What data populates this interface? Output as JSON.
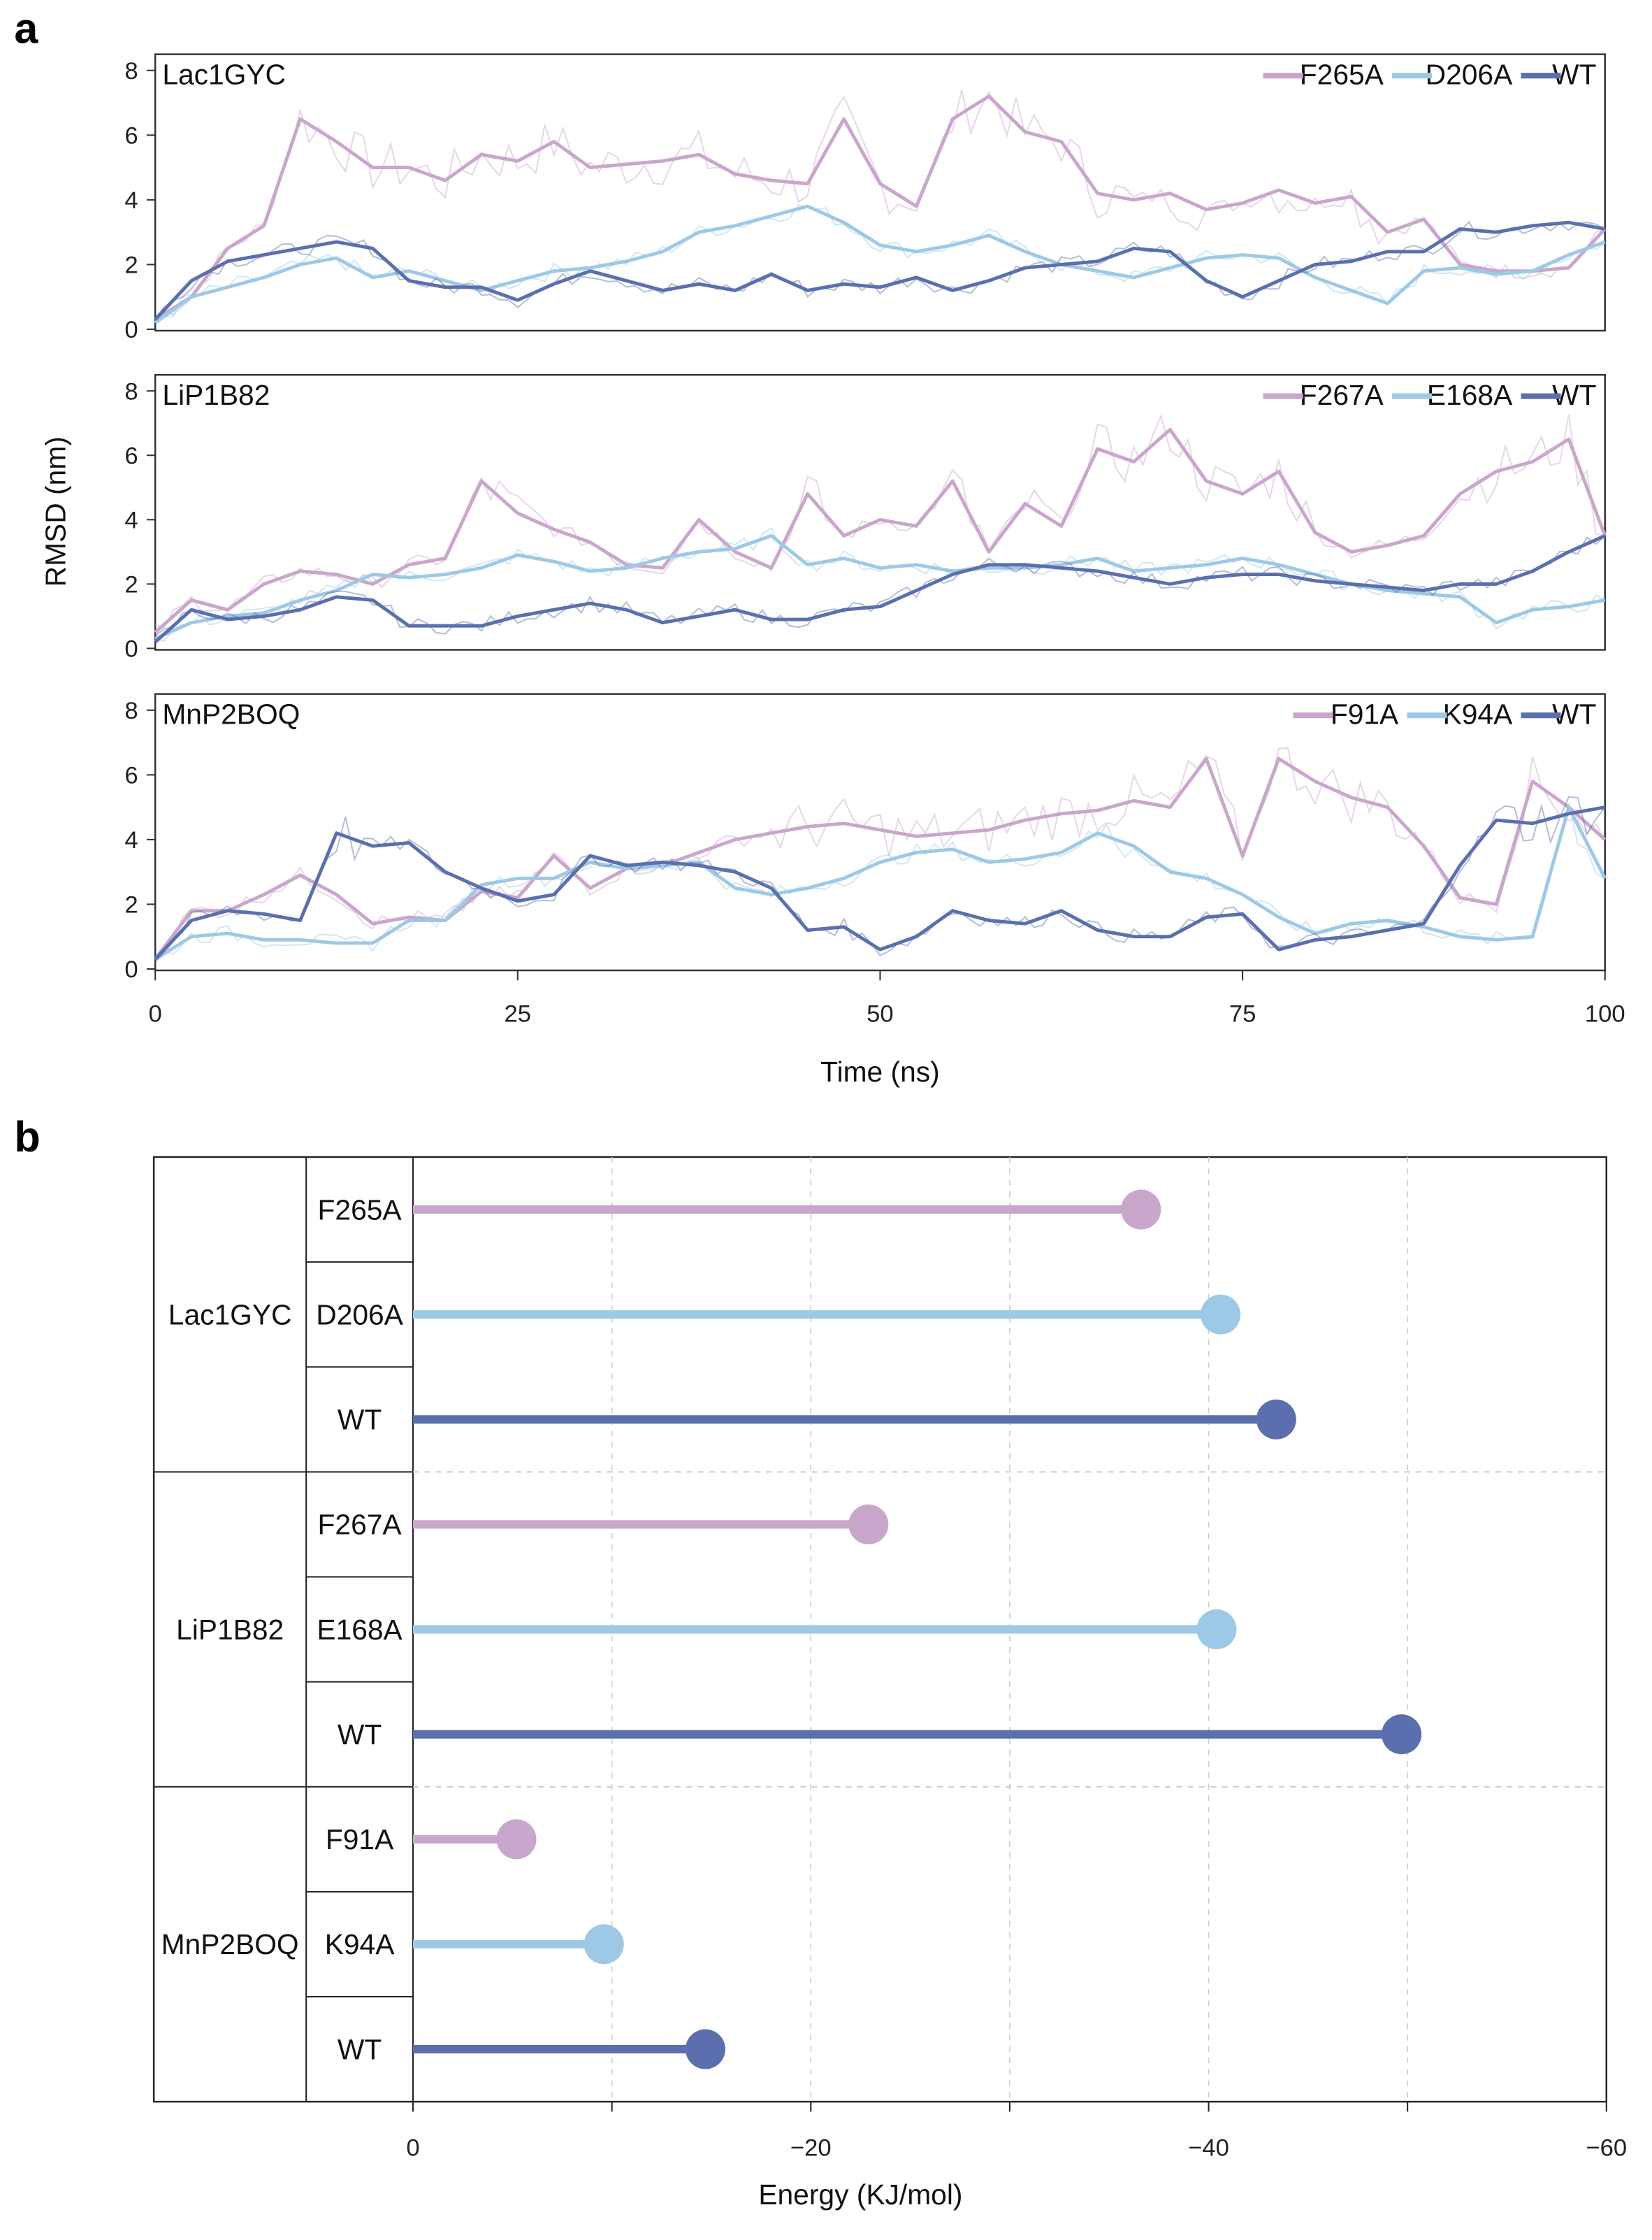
{
  "chart_data": [
    {
      "type": "line",
      "panel": "a",
      "xlabel": "Time (ns)",
      "ylabel": "RMSD (nm)",
      "xlim": [
        0,
        100
      ],
      "ylim": [
        0,
        8.5
      ],
      "xticks": [
        0,
        25,
        50,
        75,
        100
      ],
      "yticks": [
        0,
        2,
        4,
        6,
        8
      ],
      "x_step": 2.5,
      "legend_placement": "top-right",
      "subplots": [
        {
          "title": "Lac1GYC",
          "series": [
            {
              "name": "F265A",
              "color": "#c9a6cc",
              "values": [
                0.3,
                1.0,
                2.5,
                3.2,
                6.5,
                5.8,
                5.0,
                5.0,
                4.6,
                5.4,
                5.2,
                5.8,
                5.0,
                5.1,
                5.2,
                5.4,
                4.8,
                4.6,
                4.5,
                6.5,
                4.5,
                3.8,
                6.5,
                7.2,
                6.1,
                5.8,
                4.2,
                4.0,
                4.2,
                3.7,
                3.9,
                4.3,
                3.9,
                4.1,
                3.0,
                3.4,
                2.0,
                1.8,
                1.8,
                1.9,
                3.1
              ]
            },
            {
              "name": "D206A",
              "color": "#9ec9e6",
              "values": [
                0.2,
                1.0,
                1.3,
                1.6,
                2.0,
                2.2,
                1.6,
                1.8,
                1.5,
                1.2,
                1.5,
                1.8,
                1.9,
                2.1,
                2.4,
                3.0,
                3.2,
                3.5,
                3.8,
                3.3,
                2.6,
                2.4,
                2.6,
                2.9,
                2.4,
                2.0,
                1.8,
                1.6,
                1.9,
                2.2,
                2.3,
                2.2,
                1.6,
                1.2,
                0.8,
                1.8,
                1.9,
                1.7,
                1.8,
                2.3,
                2.7
              ]
            },
            {
              "name": "WT",
              "color": "#5b6fae",
              "values": [
                0.3,
                1.5,
                2.1,
                2.3,
                2.5,
                2.7,
                2.5,
                1.5,
                1.3,
                1.3,
                0.9,
                1.4,
                1.8,
                1.5,
                1.2,
                1.4,
                1.2,
                1.7,
                1.2,
                1.4,
                1.3,
                1.6,
                1.2,
                1.5,
                1.9,
                2.0,
                2.1,
                2.5,
                2.4,
                1.5,
                1.0,
                1.5,
                2.0,
                2.1,
                2.4,
                2.4,
                3.1,
                3.0,
                3.2,
                3.3,
                3.1
              ]
            }
          ]
        },
        {
          "title": "LiP1B82",
          "series": [
            {
              "name": "F267A",
              "color": "#c9a6cc",
              "values": [
                0.5,
                1.5,
                1.2,
                2.0,
                2.4,
                2.3,
                2.0,
                2.6,
                2.8,
                5.2,
                4.2,
                3.7,
                3.3,
                2.6,
                2.5,
                4.0,
                3.0,
                2.5,
                4.8,
                3.5,
                4.0,
                3.8,
                5.2,
                3.0,
                4.5,
                3.8,
                6.2,
                5.8,
                6.8,
                5.2,
                4.8,
                5.5,
                3.6,
                3.0,
                3.2,
                3.5,
                4.8,
                5.5,
                5.8,
                6.5,
                3.5
              ]
            },
            {
              "name": "E168A",
              "color": "#9ec9e6",
              "values": [
                0.3,
                0.8,
                1.0,
                1.1,
                1.5,
                1.8,
                2.3,
                2.2,
                2.3,
                2.5,
                2.9,
                2.7,
                2.4,
                2.5,
                2.8,
                3.0,
                3.1,
                3.5,
                2.6,
                2.8,
                2.5,
                2.6,
                2.4,
                2.5,
                2.5,
                2.6,
                2.8,
                2.4,
                2.5,
                2.6,
                2.8,
                2.6,
                2.3,
                2.0,
                1.8,
                1.7,
                1.6,
                0.8,
                1.2,
                1.3,
                1.5
              ]
            },
            {
              "name": "WT",
              "color": "#5b6fae",
              "values": [
                0.2,
                1.2,
                0.9,
                1.0,
                1.2,
                1.6,
                1.5,
                0.7,
                0.7,
                0.7,
                1.0,
                1.2,
                1.4,
                1.2,
                0.8,
                1.0,
                1.2,
                0.9,
                0.9,
                1.2,
                1.3,
                1.8,
                2.3,
                2.6,
                2.6,
                2.5,
                2.4,
                2.2,
                2.0,
                2.2,
                2.3,
                2.3,
                2.1,
                2.0,
                1.9,
                1.8,
                2.0,
                2.0,
                2.4,
                3.0,
                3.5
              ]
            }
          ]
        },
        {
          "title": "MnP2BOQ",
          "series": [
            {
              "name": "F91A",
              "color": "#c9a6cc",
              "values": [
                0.3,
                1.8,
                1.8,
                2.3,
                2.9,
                2.3,
                1.4,
                1.6,
                1.5,
                2.4,
                2.2,
                3.5,
                2.5,
                3.1,
                3.2,
                3.6,
                4.0,
                4.2,
                4.4,
                4.5,
                4.3,
                4.1,
                4.2,
                4.3,
                4.6,
                4.8,
                4.9,
                5.2,
                5.0,
                6.5,
                3.5,
                6.5,
                5.8,
                5.3,
                5.0,
                3.8,
                2.2,
                2.0,
                5.8,
                5.0,
                4.0
              ]
            },
            {
              "name": "K94A",
              "color": "#9ec9e6",
              "values": [
                0.3,
                1.0,
                1.1,
                0.9,
                0.9,
                0.8,
                0.8,
                1.5,
                1.5,
                2.6,
                2.8,
                2.8,
                3.3,
                3.1,
                3.2,
                3.3,
                2.5,
                2.3,
                2.5,
                2.8,
                3.3,
                3.6,
                3.7,
                3.3,
                3.4,
                3.6,
                4.2,
                3.8,
                3.0,
                2.8,
                2.3,
                1.6,
                1.1,
                1.4,
                1.5,
                1.3,
                1.0,
                0.9,
                1.0,
                5.0,
                2.8
              ]
            },
            {
              "name": "WT",
              "color": "#5b6fae",
              "values": [
                0.3,
                1.5,
                1.8,
                1.7,
                1.5,
                4.2,
                3.8,
                3.9,
                3.0,
                2.5,
                2.1,
                2.3,
                3.5,
                3.2,
                3.3,
                3.2,
                3.0,
                2.5,
                1.2,
                1.3,
                0.6,
                1.0,
                1.8,
                1.5,
                1.4,
                1.8,
                1.2,
                1.0,
                1.0,
                1.6,
                1.7,
                0.6,
                0.9,
                1.0,
                1.2,
                1.4,
                3.2,
                4.6,
                4.5,
                4.8,
                5.0
              ]
            }
          ]
        }
      ]
    },
    {
      "type": "bar",
      "subtype": "lollipop",
      "panel": "b",
      "xlabel": "Energy (KJ/mol)",
      "xlim": [
        0,
        -60
      ],
      "xticks": [
        0,
        -20,
        -40,
        -60
      ],
      "xtick_labels": [
        "0",
        "−20",
        "−40",
        "−60"
      ],
      "grid": true,
      "groups": [
        {
          "name": "Lac1GYC",
          "items": [
            {
              "label": "F265A",
              "value": -36.6,
              "color": "#c9a6cc"
            },
            {
              "label": "D206A",
              "value": -40.6,
              "color": "#9ec9e6"
            },
            {
              "label": "WT",
              "value": -43.4,
              "color": "#5b6fae"
            }
          ]
        },
        {
          "name": "LiP1B82",
          "items": [
            {
              "label": "F267A",
              "value": -22.9,
              "color": "#c9a6cc"
            },
            {
              "label": "E168A",
              "value": -40.4,
              "color": "#9ec9e6"
            },
            {
              "label": "WT",
              "value": -49.7,
              "color": "#5b6fae"
            }
          ]
        },
        {
          "name": "MnP2BOQ",
          "items": [
            {
              "label": "F91A",
              "value": -5.2,
              "color": "#c9a6cc"
            },
            {
              "label": "K94A",
              "value": -9.6,
              "color": "#9ec9e6"
            },
            {
              "label": "WT",
              "value": -14.7,
              "color": "#5b6fae"
            }
          ]
        }
      ]
    }
  ],
  "labels": {
    "panel_a": "a",
    "panel_b": "b"
  }
}
